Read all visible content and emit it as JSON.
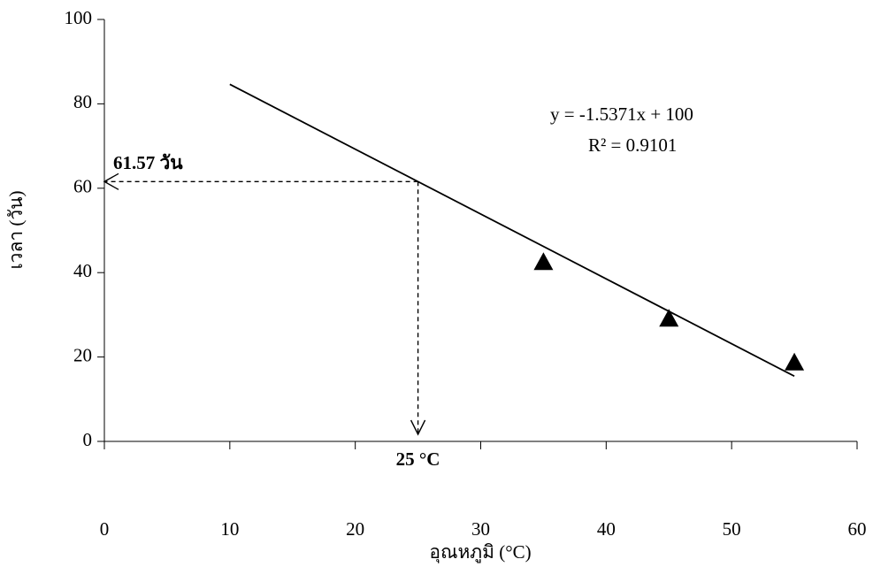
{
  "chart_data": {
    "type": "scatter",
    "x_label": "อุณหภูมิ (°C)",
    "y_label": "เวลา (วัน)",
    "series": [
      {
        "color": "#000000",
        "x": [
          35,
          45,
          55
        ],
        "values": [
          42.5,
          29.1,
          18.7
        ]
      }
    ],
    "trendline": {
      "slope": -1.5371,
      "intercept": 100,
      "x_range": [
        10,
        55
      ],
      "equation": "y = -1.5371x + 100",
      "r2": "R² = 0.9101"
    },
    "marker": {
      "x": 25,
      "y": 61.57,
      "x_label": "25 °C",
      "y_label": "61.57 วัน"
    },
    "xlim": [
      0,
      60
    ],
    "xticks": [
      0,
      10,
      20,
      30,
      40,
      50,
      60
    ],
    "ylim": [
      0,
      100
    ],
    "yticks": [
      0,
      20,
      40,
      60,
      80,
      100
    ]
  }
}
